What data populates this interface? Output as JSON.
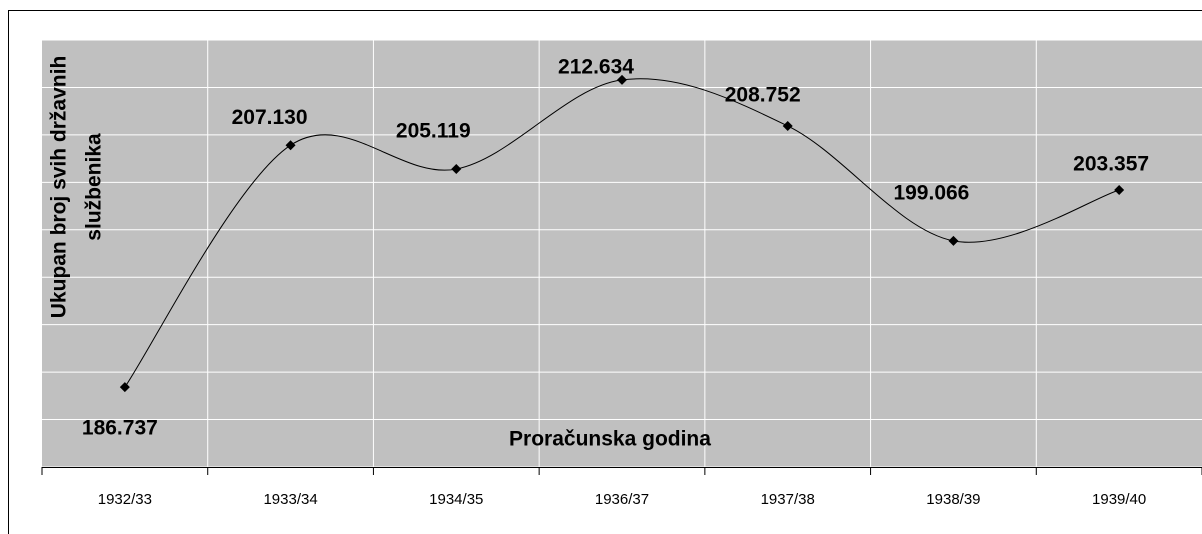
{
  "chart_data": {
    "type": "line",
    "xlabel": "Proračunska godina",
    "ylabel": [
      "Ukupan broj svih državnih",
      "službenika"
    ],
    "categories": [
      "1932/33",
      "1933/34",
      "1934/35",
      "1936/37",
      "1937/38",
      "1938/39",
      "1939/40"
    ],
    "values": [
      186737,
      207130,
      205119,
      212634,
      208752,
      199066,
      203357
    ],
    "value_labels": [
      "186.737",
      "207.130",
      "205.119",
      "212.634",
      "208.752",
      "199.066",
      "203.357"
    ],
    "color": "#000000",
    "ylim": [
      180000,
      216000
    ],
    "yticks": [
      180000,
      184000,
      188000,
      192000,
      196000,
      200000,
      204000,
      208000,
      212000,
      216000
    ],
    "grid": true,
    "smooth": true
  }
}
